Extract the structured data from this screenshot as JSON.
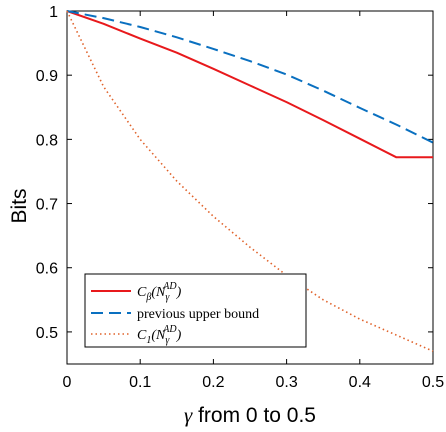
{
  "chart_data": {
    "type": "line",
    "xlabel_symbol": "γ",
    "xlabel_rest": " from 0 to 0.5",
    "ylabel": "Bits",
    "xlim": [
      0,
      0.5
    ],
    "ylim": [
      0.45,
      1.0
    ],
    "xticks": [
      "0",
      "0.1",
      "0.2",
      "0.3",
      "0.4",
      "0.5"
    ],
    "xtick_values": [
      0,
      0.1,
      0.2,
      0.3,
      0.4,
      0.5
    ],
    "yticks": [
      "0.5",
      "0.6",
      "0.7",
      "0.8",
      "0.9",
      "1"
    ],
    "ytick_values": [
      0.5,
      0.6,
      0.7,
      0.8,
      0.9,
      1.0
    ],
    "grid": false,
    "legend_position": "bottom-left",
    "series": [
      {
        "name": "C_β(N_γ^AD)",
        "legend_main": "C",
        "legend_sub": "β",
        "legend_arg": "(N",
        "legend_arg_sub": "γ",
        "legend_arg_sup": "AD",
        "legend_close": ")",
        "color": "#e8191c",
        "style": "solid",
        "x": [
          0,
          0.05,
          0.1,
          0.15,
          0.2,
          0.25,
          0.3,
          0.35,
          0.4,
          0.45,
          0.5
        ],
        "y": [
          1.0,
          0.98,
          0.957,
          0.935,
          0.91,
          0.884,
          0.858,
          0.83,
          0.801,
          0.772,
          0.772
        ]
      },
      {
        "name": "previous upper bound",
        "legend_text": "previous upper bound",
        "color": "#0a70c0",
        "style": "dashed",
        "x": [
          0,
          0.05,
          0.1,
          0.15,
          0.2,
          0.25,
          0.3,
          0.35,
          0.4,
          0.45,
          0.5
        ],
        "y": [
          1.0,
          0.989,
          0.975,
          0.959,
          0.941,
          0.922,
          0.901,
          0.876,
          0.849,
          0.823,
          0.795
        ]
      },
      {
        "name": "C_1(N_γ^AD)",
        "legend_main": "C",
        "legend_sub": "1",
        "legend_arg": "(N",
        "legend_arg_sub": "γ",
        "legend_arg_sup": "AD",
        "legend_close": ")",
        "color": "#e0622a",
        "style": "dotted",
        "x": [
          0,
          0.05,
          0.1,
          0.15,
          0.2,
          0.25,
          0.3,
          0.35,
          0.4,
          0.45,
          0.5
        ],
        "y": [
          1.0,
          0.882,
          0.8,
          0.735,
          0.68,
          0.632,
          0.588,
          0.55,
          0.52,
          0.495,
          0.47
        ]
      }
    ]
  }
}
